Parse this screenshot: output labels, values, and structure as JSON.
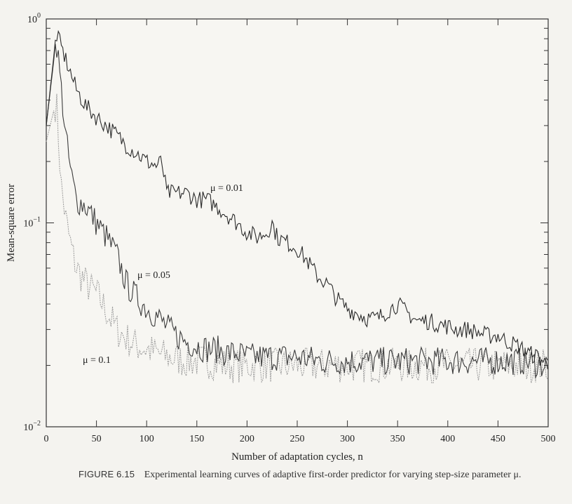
{
  "chart_data": {
    "type": "line",
    "x_label": "Number of adaptation cycles, n",
    "y_label": "Mean-square error",
    "y_scale": "log",
    "xlim": [
      0,
      500
    ],
    "ylim": [
      0.01,
      1
    ],
    "x_ticks": [
      0,
      50,
      100,
      150,
      200,
      250,
      300,
      350,
      400,
      450,
      500
    ],
    "x_tick_labels": [
      "0",
      "50",
      "100",
      "150",
      "200",
      "250",
      "300",
      "350",
      "400",
      "450",
      "500"
    ],
    "y_ticks": [
      {
        "value": 1,
        "base": "10",
        "exp": "0"
      },
      {
        "value": 0.1,
        "base": "10",
        "exp": "−1"
      },
      {
        "value": 0.01,
        "base": "10",
        "exp": "−2"
      }
    ],
    "grid": false,
    "annotations": [
      {
        "text": "μ = 0.01",
        "series": 0
      },
      {
        "text": "μ = 0.05",
        "series": 1
      },
      {
        "text": "μ = 0.1",
        "series": 2
      }
    ],
    "series": [
      {
        "label": "μ = 0.01",
        "color": "#2b2b2b",
        "points": [
          [
            0,
            0.3
          ],
          [
            10,
            0.85
          ],
          [
            20,
            0.62
          ],
          [
            30,
            0.45
          ],
          [
            40,
            0.37
          ],
          [
            50,
            0.33
          ],
          [
            60,
            0.3
          ],
          [
            70,
            0.27
          ],
          [
            80,
            0.24
          ],
          [
            90,
            0.22
          ],
          [
            100,
            0.2
          ],
          [
            110,
            0.19
          ],
          [
            115,
            0.2
          ],
          [
            120,
            0.14
          ],
          [
            130,
            0.14
          ],
          [
            140,
            0.14
          ],
          [
            150,
            0.13
          ],
          [
            160,
            0.13
          ],
          [
            170,
            0.12
          ],
          [
            180,
            0.11
          ],
          [
            190,
            0.1
          ],
          [
            200,
            0.09
          ],
          [
            210,
            0.085
          ],
          [
            220,
            0.09
          ],
          [
            225,
            0.1
          ],
          [
            230,
            0.085
          ],
          [
            240,
            0.08
          ],
          [
            250,
            0.075
          ],
          [
            260,
            0.065
          ],
          [
            270,
            0.055
          ],
          [
            280,
            0.05
          ],
          [
            290,
            0.042
          ],
          [
            300,
            0.038
          ],
          [
            310,
            0.036
          ],
          [
            320,
            0.034
          ],
          [
            330,
            0.034
          ],
          [
            340,
            0.037
          ],
          [
            350,
            0.04
          ],
          [
            360,
            0.036
          ],
          [
            370,
            0.033
          ],
          [
            380,
            0.033
          ],
          [
            390,
            0.032
          ],
          [
            400,
            0.031
          ],
          [
            410,
            0.03
          ],
          [
            420,
            0.03
          ],
          [
            430,
            0.029
          ],
          [
            440,
            0.028
          ],
          [
            450,
            0.028
          ],
          [
            460,
            0.026
          ],
          [
            470,
            0.025
          ],
          [
            480,
            0.023
          ],
          [
            490,
            0.022
          ],
          [
            500,
            0.02
          ]
        ]
      },
      {
        "label": "μ = 0.05",
        "color": "#3c3c3c",
        "points": [
          [
            0,
            0.3
          ],
          [
            10,
            0.8
          ],
          [
            15,
            0.45
          ],
          [
            20,
            0.25
          ],
          [
            25,
            0.17
          ],
          [
            30,
            0.13
          ],
          [
            40,
            0.12
          ],
          [
            50,
            0.1
          ],
          [
            60,
            0.085
          ],
          [
            70,
            0.07
          ],
          [
            80,
            0.05
          ],
          [
            90,
            0.043
          ],
          [
            100,
            0.038
          ],
          [
            110,
            0.035
          ],
          [
            120,
            0.031
          ],
          [
            130,
            0.028
          ],
          [
            140,
            0.026
          ],
          [
            150,
            0.025
          ],
          [
            160,
            0.024
          ],
          [
            170,
            0.024
          ],
          [
            180,
            0.023
          ],
          [
            190,
            0.023
          ],
          [
            200,
            0.022
          ],
          [
            225,
            0.022
          ],
          [
            250,
            0.022
          ],
          [
            275,
            0.021
          ],
          [
            300,
            0.021
          ],
          [
            325,
            0.021
          ],
          [
            350,
            0.021
          ],
          [
            375,
            0.021
          ],
          [
            400,
            0.021
          ],
          [
            425,
            0.021
          ],
          [
            450,
            0.021
          ],
          [
            475,
            0.021
          ],
          [
            500,
            0.02
          ]
        ]
      },
      {
        "label": "μ = 0.1",
        "color": "#9a9a9a",
        "points": [
          [
            0,
            0.25
          ],
          [
            10,
            0.4
          ],
          [
            15,
            0.15
          ],
          [
            20,
            0.1
          ],
          [
            25,
            0.075
          ],
          [
            30,
            0.06
          ],
          [
            40,
            0.05
          ],
          [
            50,
            0.045
          ],
          [
            60,
            0.037
          ],
          [
            70,
            0.03
          ],
          [
            80,
            0.027
          ],
          [
            90,
            0.025
          ],
          [
            100,
            0.024
          ],
          [
            110,
            0.023
          ],
          [
            120,
            0.022
          ],
          [
            140,
            0.021
          ],
          [
            160,
            0.021
          ],
          [
            180,
            0.02
          ],
          [
            200,
            0.02
          ],
          [
            250,
            0.02
          ],
          [
            300,
            0.02
          ],
          [
            350,
            0.02
          ],
          [
            400,
            0.02
          ],
          [
            450,
            0.02
          ],
          [
            500,
            0.02
          ]
        ]
      }
    ]
  },
  "caption": {
    "label": "FIGURE 6.15",
    "text": "Experimental learning curves of adaptive first-order predictor for varying step-size parameter μ."
  }
}
